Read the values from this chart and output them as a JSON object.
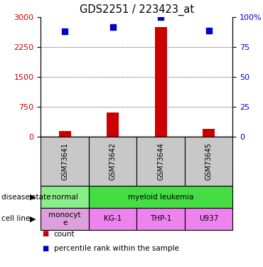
{
  "title": "GDS2251 / 223423_at",
  "samples": [
    "GSM73641",
    "GSM73642",
    "GSM73644",
    "GSM73645"
  ],
  "counts": [
    150,
    600,
    2750,
    200
  ],
  "percentiles": [
    88,
    92,
    100,
    89
  ],
  "ylim_left": [
    0,
    3000
  ],
  "ylim_right": [
    0,
    100
  ],
  "yticks_left": [
    0,
    750,
    1500,
    2250,
    3000
  ],
  "yticks_right": [
    0,
    25,
    50,
    75,
    100
  ],
  "bar_color": "#cc0000",
  "scatter_color": "#0000cc",
  "gray_color": "#c8c8c8",
  "background": "#ffffff",
  "disease_data": [
    {
      "label": "normal",
      "span": 1,
      "color": "#88ee88"
    },
    {
      "label": "myeloid leukemia",
      "span": 3,
      "color": "#44dd44"
    }
  ],
  "cell_data": [
    {
      "label": "monocyt\ne",
      "span": 1,
      "color": "#dda0dd"
    },
    {
      "label": "KG-1",
      "span": 1,
      "color": "#ee82ee"
    },
    {
      "label": "THP-1",
      "span": 1,
      "color": "#ee82ee"
    },
    {
      "label": "U937",
      "span": 1,
      "color": "#ee82ee"
    }
  ],
  "legend_count_color": "#cc0000",
  "legend_pct_color": "#0000cc"
}
